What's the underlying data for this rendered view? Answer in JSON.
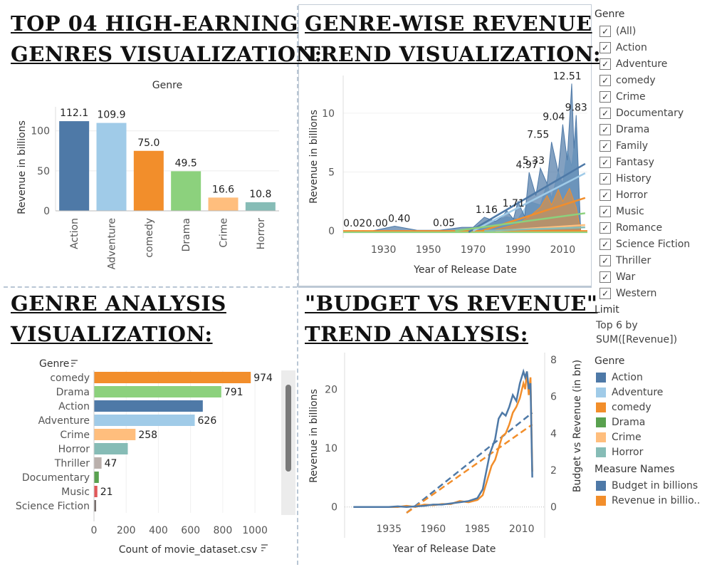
{
  "titles": {
    "top": [
      "Top 04 High-Earning",
      "Genres Visualization:"
    ],
    "trend": [
      "Genre-wise Revenue",
      "Trend Visualization:"
    ],
    "analysis": [
      "Genre Analysis",
      "Visualization:"
    ],
    "budget": [
      "\"Budget vs Revenue\"",
      "Trend Analysis:"
    ]
  },
  "chart_data": [
    {
      "type": "bar",
      "title": "Genre",
      "categories": [
        "Action",
        "Adventure",
        "comedy",
        "Drama",
        "Crime",
        "Horror"
      ],
      "values": [
        112.1,
        109.9,
        75.0,
        49.5,
        16.6,
        10.8
      ],
      "labels": [
        "112.1",
        "109.9",
        "75.0",
        "49.5",
        "16.6",
        "10.8"
      ],
      "colors": [
        "#4e79a7",
        "#a0cbe8",
        "#f28e2b",
        "#8cd17d",
        "#ffbe7d",
        "#86bcb6"
      ],
      "ylabel": "Revenue in billions",
      "yticks": [
        0,
        50,
        100
      ],
      "ylim": [
        0,
        130
      ]
    },
    {
      "type": "area",
      "xlabel": "Year of Release Date",
      "ylabel": "Revenue in billions",
      "xticks": [
        1930,
        1950,
        1970,
        1990,
        2010
      ],
      "yticks": [
        0,
        5,
        10
      ],
      "xlim": [
        1912,
        2021
      ],
      "ylim": [
        -0.6,
        13.2
      ],
      "annotations": [
        {
          "x": 1917,
          "y": 0.02,
          "label": "0.02"
        },
        {
          "x": 1927,
          "y": 0.0,
          "label": "0.00"
        },
        {
          "x": 1937,
          "y": 0.4,
          "label": "0.40"
        },
        {
          "x": 1957,
          "y": 0.05,
          "label": "0.05"
        },
        {
          "x": 1976,
          "y": 1.16,
          "label": "1.16"
        },
        {
          "x": 1988,
          "y": 1.71,
          "label": "1.71"
        },
        {
          "x": 1994,
          "y": 4.97,
          "label": "4.97"
        },
        {
          "x": 1997,
          "y": 5.33,
          "label": "5.33"
        },
        {
          "x": 1999,
          "y": 7.55,
          "label": "7.55"
        },
        {
          "x": 2006,
          "y": 9.04,
          "label": "9.04"
        },
        {
          "x": 2012,
          "y": 12.51,
          "label": "12.51"
        },
        {
          "x": 2016,
          "y": 9.83,
          "label": "9.83"
        }
      ],
      "action_series": {
        "x": [
          1915,
          1925,
          1935,
          1945,
          1955,
          1965,
          1970,
          1975,
          1980,
          1983,
          1985,
          1988,
          1990,
          1993,
          1995,
          1998,
          2000,
          2003,
          2005,
          2008,
          2010,
          2012,
          2014,
          2015,
          2016,
          2017,
          2018
        ],
        "y": [
          0.02,
          0.0,
          0.4,
          0.05,
          0.05,
          0.3,
          0.3,
          1.16,
          0.8,
          1.2,
          1.71,
          1.0,
          2.5,
          1.2,
          4.97,
          3.0,
          5.33,
          4.0,
          7.55,
          5.0,
          9.04,
          6.0,
          12.51,
          7.0,
          9.83,
          5.0,
          0
        ]
      },
      "adventure_series": {
        "x": [
          1965,
          1975,
          1985,
          1990,
          1995,
          2000,
          2003,
          2005,
          2008,
          2010,
          2012,
          2014,
          2016,
          2018
        ],
        "y": [
          0.1,
          0.5,
          1.2,
          1.0,
          2.5,
          2.2,
          4.0,
          2.8,
          5.0,
          4.0,
          6.8,
          5.5,
          8.8,
          0
        ]
      },
      "comedy_series": {
        "x": [
          1980,
          1990,
          1995,
          2000,
          2003,
          2005,
          2008,
          2010,
          2013,
          2016,
          2018
        ],
        "y": [
          0.1,
          0.6,
          1.2,
          2.0,
          3.0,
          2.2,
          3.5,
          2.5,
          3.6,
          2.0,
          0
        ]
      },
      "trend_lines": [
        {
          "genre": "Action",
          "x": [
            1968,
            2020
          ],
          "y": [
            -0.1,
            5.7
          ],
          "color": "#4e79a7"
        },
        {
          "genre": "Adventure",
          "x": [
            1970,
            2020
          ],
          "y": [
            0,
            4.9
          ],
          "color": "#a0cbe8"
        },
        {
          "genre": "comedy",
          "x": [
            1974,
            2020
          ],
          "y": [
            0,
            2.8
          ],
          "color": "#f28e2b"
        },
        {
          "genre": "Drama",
          "x": [
            1962,
            2020
          ],
          "y": [
            0,
            1.5
          ],
          "color": "#8cd17d"
        },
        {
          "genre": "Crime",
          "x": [
            1980,
            2020
          ],
          "y": [
            0,
            0.5
          ],
          "color": "#ffbe7d"
        },
        {
          "genre": "Horror",
          "x": [
            1975,
            2020
          ],
          "y": [
            0,
            0.3
          ],
          "color": "#86bcb6"
        }
      ]
    },
    {
      "type": "bar",
      "orientation": "horizontal",
      "header": "Genre",
      "categories": [
        "comedy",
        "Drama",
        "Action",
        "Adventure",
        "Crime",
        "Horror",
        "Thriller",
        "Documentary",
        "Music",
        "Science Fiction"
      ],
      "values": [
        974,
        791,
        676,
        626,
        258,
        210,
        47,
        30,
        21,
        10
      ],
      "labels": [
        "974",
        "791",
        "",
        "626",
        "258",
        "",
        "47",
        "",
        "21",
        ""
      ],
      "colors": [
        "#f28e2b",
        "#8cd17d",
        "#4e79a7",
        "#a0cbe8",
        "#ffbe7d",
        "#86bcb6",
        "#bab0ac",
        "#59a14f",
        "#e15759",
        "#79706e"
      ],
      "xlabel": "Count of movie_dataset.csv",
      "xticks": [
        0,
        200,
        400,
        600,
        800,
        1000
      ],
      "xlim": [
        0,
        1150
      ]
    },
    {
      "type": "line",
      "xlabel": "Year of Release Date",
      "ylabel": "Revenue in billions",
      "y2label": "Budget vs Revenue (in bn)",
      "xticks": [
        1935,
        1960,
        1985,
        2010
      ],
      "yticks": [
        0,
        10,
        20
      ],
      "y2ticks": [
        0,
        2,
        4,
        6,
        8
      ],
      "xlim": [
        1910,
        2023
      ],
      "ylim": [
        -1,
        25
      ],
      "y2lim": [
        -0.32,
        8
      ],
      "series": [
        {
          "name": "Budget in billions",
          "color": "#4e79a7",
          "x": [
            1915,
            1925,
            1935,
            1940,
            1945,
            1950,
            1955,
            1960,
            1965,
            1970,
            1975,
            1980,
            1985,
            1988,
            1990,
            1992,
            1995,
            1997,
            1999,
            2001,
            2003,
            2005,
            2007,
            2009,
            2011,
            2012,
            2013,
            2014,
            2015,
            2016
          ],
          "y": [
            0,
            0,
            0,
            0.1,
            0,
            0.1,
            0.2,
            0.4,
            0.4,
            0.6,
            0.8,
            1.0,
            1.5,
            3.0,
            6.0,
            9.0,
            11.5,
            15.0,
            16.0,
            15.5,
            17.0,
            19.0,
            18.0,
            21.0,
            23.0,
            22.0,
            23.0,
            20.0,
            21.0,
            5.0
          ]
        },
        {
          "name": "Revenue in billions",
          "color": "#f28e2b",
          "x": [
            1935,
            1940,
            1945,
            1950,
            1955,
            1960,
            1965,
            1970,
            1975,
            1980,
            1985,
            1988,
            1990,
            1993,
            1995,
            1997,
            1999,
            2001,
            2003,
            2005,
            2007,
            2009,
            2011,
            2012,
            2013,
            2014,
            2015,
            2016
          ],
          "y": [
            0,
            0,
            0.2,
            0,
            0.4,
            0.3,
            0.5,
            0.5,
            1.0,
            0.8,
            1.2,
            2.0,
            4.0,
            7.0,
            8.0,
            10.0,
            12.0,
            12.5,
            14.0,
            16.0,
            17.0,
            18.5,
            21.0,
            20.0,
            23.0,
            19.0,
            22.0,
            6.0
          ]
        }
      ],
      "trend_lines": [
        {
          "series": "Budget in billions",
          "x": [
            1945,
            2016
          ],
          "y": [
            -1,
            16
          ]
        },
        {
          "series": "Revenue in billions",
          "x": [
            1945,
            2016
          ],
          "y": [
            -1,
            14
          ]
        }
      ]
    }
  ],
  "legend": {
    "filter_title": "Genre",
    "filter_items": [
      "(All)",
      "Action",
      "Adventure",
      "comedy",
      "Crime",
      "Documentary",
      "Drama",
      "Family",
      "Fantasy",
      "History",
      "Horror",
      "Music",
      "Romance",
      "Science Fiction",
      "Thriller",
      "War",
      "Western"
    ],
    "limit_title": "Limit",
    "limit_line1": "Top 6 by",
    "limit_line2": "SUM([Revenue])",
    "color_title": "Genre",
    "color_items": [
      {
        "label": "Action",
        "color": "#4e79a7"
      },
      {
        "label": "Adventure",
        "color": "#a0cbe8"
      },
      {
        "label": "comedy",
        "color": "#f28e2b"
      },
      {
        "label": "Drama",
        "color": "#59a14f"
      },
      {
        "label": "Crime",
        "color": "#ffbe7d"
      },
      {
        "label": "Horror",
        "color": "#86bcb6"
      }
    ],
    "measure_title": "Measure Names",
    "measure_items": [
      {
        "label": "Budget in billions",
        "color": "#4e79a7"
      },
      {
        "label": "Revenue in billio..",
        "color": "#f28e2b"
      }
    ]
  }
}
